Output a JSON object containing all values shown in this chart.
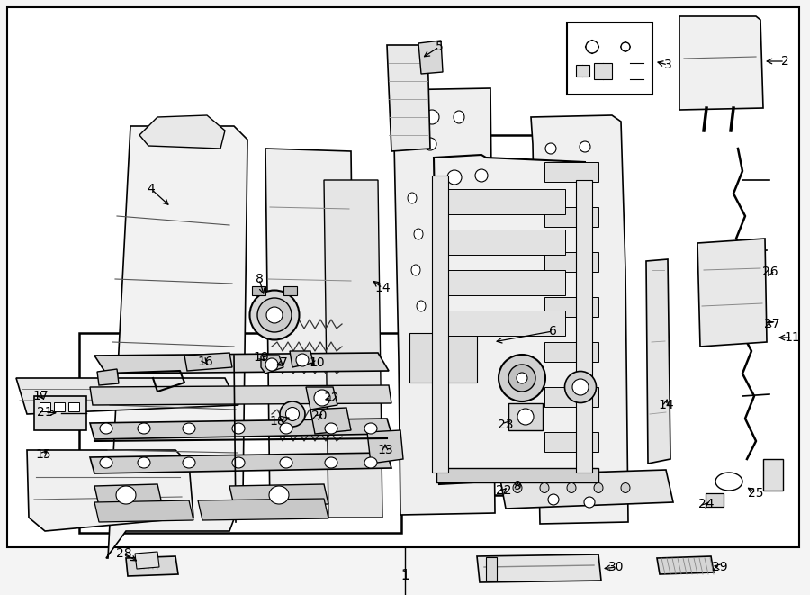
{
  "bg_color": "#f4f4f4",
  "border_color": "#000000",
  "fig_width": 9.0,
  "fig_height": 6.61,
  "dpi": 100
}
